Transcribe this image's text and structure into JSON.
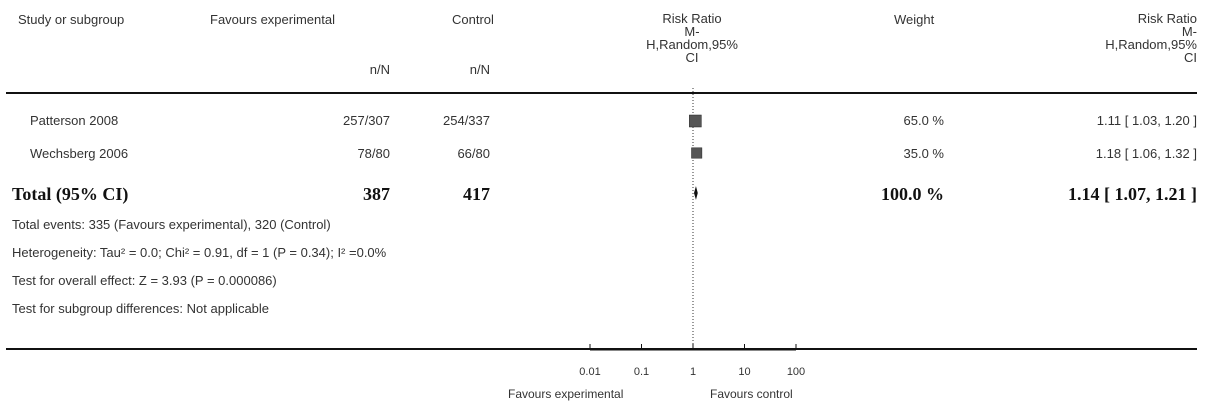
{
  "headers": {
    "study": "Study or subgroup",
    "experimental": "Favours experimental",
    "control": "Control",
    "plot_line1": "Risk Ratio",
    "plot_line2": "M-",
    "plot_line3": "H,Random,95%",
    "plot_line4": "CI",
    "weight": "Weight",
    "rr_line1": "Risk Ratio",
    "rr_line2": "M-",
    "rr_line3": "H,Random,95%",
    "rr_line4": "CI",
    "exp_sub": "n/N",
    "ctl_sub": "n/N"
  },
  "studies": [
    {
      "name": "Patterson 2008",
      "experimental": "257/307",
      "control": "254/337",
      "weight": "65.0 %",
      "rr_text": "1.11 [ 1.03, 1.20 ]"
    },
    {
      "name": "Wechsberg 2006",
      "experimental": "78/80",
      "control": "66/80",
      "weight": "35.0 %",
      "rr_text": "1.18 [ 1.06, 1.32 ]"
    }
  ],
  "total": {
    "label": "Total (95% CI)",
    "experimental": "387",
    "control": "417",
    "weight": "100.0 %",
    "rr_text": "1.14 [ 1.07, 1.21 ]"
  },
  "notes": {
    "events": "Total events: 335 (Favours experimental), 320 (Control)",
    "heterogeneity": "Heterogeneity: Tau² = 0.0; Chi² = 0.91, df = 1 (P = 0.34); I² =0.0%",
    "overall": "Test for overall effect: Z = 3.93 (P = 0.000086)",
    "subgroup": "Test for subgroup differences: Not applicable"
  },
  "axis": {
    "favours_left": "Favours experimental",
    "favours_right": "Favours control"
  },
  "chart_data": {
    "type": "forest",
    "scale": "log",
    "xlim": [
      0.01,
      100
    ],
    "null_line": 1,
    "ticks": [
      0.01,
      0.1,
      1,
      10,
      100
    ],
    "tick_labels": [
      "0.01",
      "0.1",
      "1",
      "10",
      "100"
    ],
    "series": [
      {
        "name": "Patterson 2008",
        "rr": 1.11,
        "lower": 1.03,
        "upper": 1.2,
        "weight": 65.0
      },
      {
        "name": "Wechsberg 2006",
        "rr": 1.18,
        "lower": 1.06,
        "upper": 1.32,
        "weight": 35.0
      }
    ],
    "pooled": {
      "rr": 1.14,
      "lower": 1.07,
      "upper": 1.21
    }
  }
}
